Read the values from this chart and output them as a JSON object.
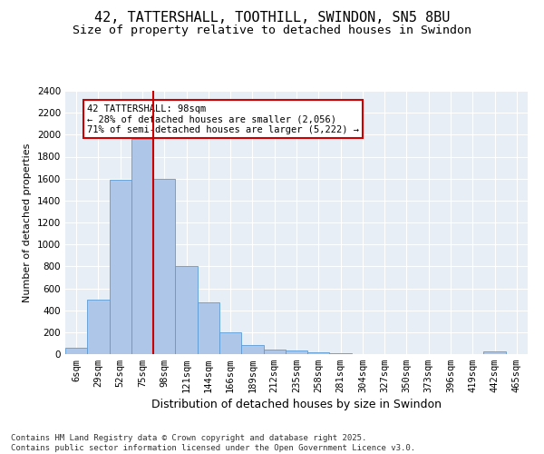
{
  "title": "42, TATTERSHALL, TOOTHILL, SWINDON, SN5 8BU",
  "subtitle": "Size of property relative to detached houses in Swindon",
  "xlabel": "Distribution of detached houses by size in Swindon",
  "ylabel": "Number of detached properties",
  "categories": [
    "6sqm",
    "29sqm",
    "52sqm",
    "75sqm",
    "98sqm",
    "121sqm",
    "144sqm",
    "166sqm",
    "189sqm",
    "212sqm",
    "235sqm",
    "258sqm",
    "281sqm",
    "304sqm",
    "327sqm",
    "350sqm",
    "373sqm",
    "396sqm",
    "419sqm",
    "442sqm",
    "465sqm"
  ],
  "values": [
    60,
    500,
    1590,
    1960,
    1600,
    800,
    470,
    195,
    85,
    40,
    30,
    20,
    10,
    0,
    0,
    0,
    0,
    0,
    0,
    25,
    0
  ],
  "bar_color": "#aec6e8",
  "bar_edge_color": "#5b9bd5",
  "vline_index": 4,
  "vline_color": "#cc0000",
  "annotation_text": "42 TATTERSHALL: 98sqm\n← 28% of detached houses are smaller (2,056)\n71% of semi-detached houses are larger (5,222) →",
  "annotation_box_color": "#cc0000",
  "ylim": [
    0,
    2400
  ],
  "yticks": [
    0,
    200,
    400,
    600,
    800,
    1000,
    1200,
    1400,
    1600,
    1800,
    2000,
    2200,
    2400
  ],
  "background_color": "#e8eef5",
  "grid_color": "#ffffff",
  "footer": "Contains HM Land Registry data © Crown copyright and database right 2025.\nContains public sector information licensed under the Open Government Licence v3.0.",
  "title_fontsize": 11,
  "subtitle_fontsize": 9.5,
  "xlabel_fontsize": 9,
  "ylabel_fontsize": 8,
  "tick_fontsize": 7.5,
  "annotation_fontsize": 7.5,
  "footer_fontsize": 6.5
}
